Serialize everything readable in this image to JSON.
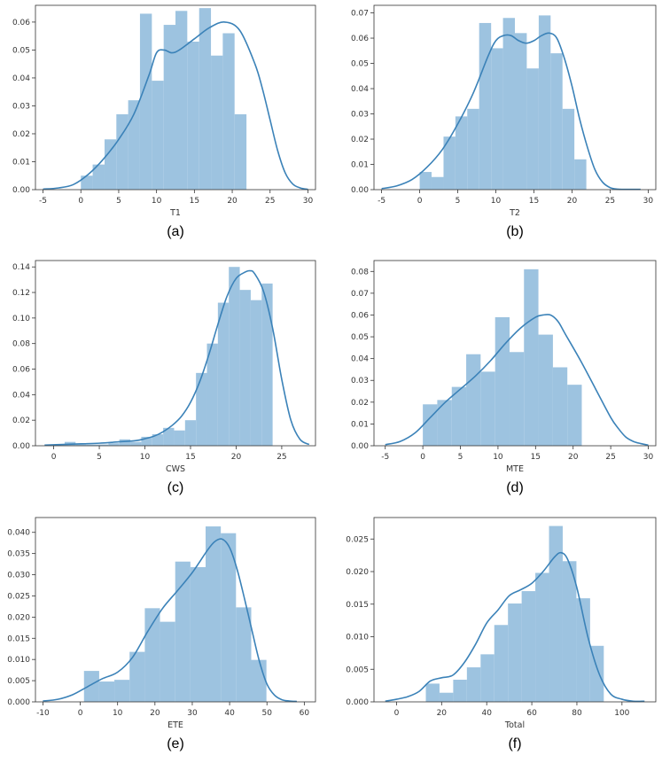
{
  "colors": {
    "bar_fill": "#9dc3e0",
    "kde_line": "#3b82b8",
    "axis": "#333333"
  },
  "chart_data": [
    {
      "type": "histogram",
      "caption": "(a)",
      "xlabel": "T1",
      "xlim": [
        -6,
        31
      ],
      "ylim": [
        0,
        0.066
      ],
      "xticks": [
        -5,
        0,
        5,
        10,
        15,
        20,
        25,
        30
      ],
      "yticks": [
        0.0,
        0.01,
        0.02,
        0.03,
        0.04,
        0.05,
        0.06
      ],
      "ytick_labels": [
        "0.00",
        "0.01",
        "0.02",
        "0.03",
        "0.04",
        "0.05",
        "0.06"
      ],
      "bars": [
        {
          "x0": 0,
          "x1": 1.56,
          "height": 0.005
        },
        {
          "x0": 1.56,
          "x1": 3.13,
          "height": 0.009
        },
        {
          "x0": 3.13,
          "x1": 4.69,
          "height": 0.018
        },
        {
          "x0": 4.69,
          "x1": 6.25,
          "height": 0.027
        },
        {
          "x0": 6.25,
          "x1": 7.81,
          "height": 0.032
        },
        {
          "x0": 7.81,
          "x1": 9.38,
          "height": 0.063
        },
        {
          "x0": 9.38,
          "x1": 10.94,
          "height": 0.039
        },
        {
          "x0": 10.94,
          "x1": 12.5,
          "height": 0.059
        },
        {
          "x0": 12.5,
          "x1": 14.06,
          "height": 0.064
        },
        {
          "x0": 14.06,
          "x1": 15.63,
          "height": 0.053
        },
        {
          "x0": 15.63,
          "x1": 17.19,
          "height": 0.065
        },
        {
          "x0": 17.19,
          "x1": 18.75,
          "height": 0.048
        },
        {
          "x0": 18.75,
          "x1": 20.31,
          "height": 0.056
        },
        {
          "x0": 20.31,
          "x1": 21.88,
          "height": 0.027
        }
      ],
      "kde": {
        "x": [
          -5,
          -3,
          -1,
          1,
          3,
          5,
          7,
          9,
          10,
          11,
          12,
          13,
          15,
          17,
          19,
          21,
          23,
          24,
          25,
          26,
          27,
          28,
          29,
          30
        ],
        "y": [
          0.0002,
          0.0006,
          0.0018,
          0.0055,
          0.011,
          0.018,
          0.027,
          0.041,
          0.049,
          0.05,
          0.049,
          0.05,
          0.054,
          0.058,
          0.06,
          0.057,
          0.045,
          0.036,
          0.025,
          0.014,
          0.006,
          0.002,
          0.0006,
          0.0001
        ]
      }
    },
    {
      "type": "histogram",
      "caption": "(b)",
      "xlabel": "T2",
      "xlim": [
        -6,
        31
      ],
      "ylim": [
        0,
        0.073
      ],
      "xticks": [
        -5,
        0,
        5,
        10,
        15,
        20,
        25,
        30
      ],
      "yticks": [
        0.0,
        0.01,
        0.02,
        0.03,
        0.04,
        0.05,
        0.06,
        0.07
      ],
      "ytick_labels": [
        "0.00",
        "0.01",
        "0.02",
        "0.03",
        "0.04",
        "0.05",
        "0.06",
        "0.07"
      ],
      "bars": [
        {
          "x0": 0,
          "x1": 1.56,
          "height": 0.007
        },
        {
          "x0": 1.56,
          "x1": 3.13,
          "height": 0.005
        },
        {
          "x0": 3.13,
          "x1": 4.69,
          "height": 0.021
        },
        {
          "x0": 4.69,
          "x1": 6.25,
          "height": 0.029
        },
        {
          "x0": 6.25,
          "x1": 7.81,
          "height": 0.032
        },
        {
          "x0": 7.81,
          "x1": 9.38,
          "height": 0.066
        },
        {
          "x0": 9.38,
          "x1": 10.94,
          "height": 0.056
        },
        {
          "x0": 10.94,
          "x1": 12.5,
          "height": 0.068
        },
        {
          "x0": 12.5,
          "x1": 14.06,
          "height": 0.062
        },
        {
          "x0": 14.06,
          "x1": 15.63,
          "height": 0.048
        },
        {
          "x0": 15.63,
          "x1": 17.19,
          "height": 0.069
        },
        {
          "x0": 17.19,
          "x1": 18.75,
          "height": 0.054
        },
        {
          "x0": 18.75,
          "x1": 20.31,
          "height": 0.032
        },
        {
          "x0": 20.31,
          "x1": 21.88,
          "height": 0.012
        }
      ],
      "kde": {
        "x": [
          -5,
          -3,
          -1,
          1,
          3,
          5,
          7,
          9,
          10,
          11,
          12,
          13,
          14,
          15,
          16,
          17,
          18,
          19,
          20,
          21,
          22,
          23,
          24,
          25,
          26,
          27,
          28,
          29
        ],
        "y": [
          0.0004,
          0.0015,
          0.004,
          0.009,
          0.016,
          0.026,
          0.038,
          0.053,
          0.059,
          0.061,
          0.061,
          0.059,
          0.058,
          0.059,
          0.061,
          0.062,
          0.06,
          0.052,
          0.041,
          0.028,
          0.017,
          0.008,
          0.003,
          0.0008,
          0.0002,
          0.0001,
          0.0001,
          0.0001
        ]
      }
    },
    {
      "type": "histogram",
      "caption": "(c)",
      "xlabel": "CWS",
      "xlim": [
        -2,
        28.7
      ],
      "ylim": [
        0,
        0.145
      ],
      "xticks": [
        0,
        5,
        10,
        15,
        20,
        25
      ],
      "yticks": [
        0.0,
        0.02,
        0.04,
        0.06,
        0.08,
        0.1,
        0.12,
        0.14
      ],
      "ytick_labels": [
        "0.00",
        "0.02",
        "0.04",
        "0.06",
        "0.08",
        "0.10",
        "0.12",
        "0.14"
      ],
      "bars": [
        {
          "x0": 0,
          "x1": 1.2,
          "height": 0.001
        },
        {
          "x0": 1.2,
          "x1": 2.4,
          "height": 0.003
        },
        {
          "x0": 2.4,
          "x1": 3.6,
          "height": 0.001
        },
        {
          "x0": 3.6,
          "x1": 4.8,
          "height": 0.001
        },
        {
          "x0": 4.8,
          "x1": 6.0,
          "height": 0.001
        },
        {
          "x0": 6.0,
          "x1": 7.2,
          "height": 0.002
        },
        {
          "x0": 7.2,
          "x1": 8.4,
          "height": 0.005
        },
        {
          "x0": 8.4,
          "x1": 9.6,
          "height": 0.003
        },
        {
          "x0": 9.6,
          "x1": 10.8,
          "height": 0.007
        },
        {
          "x0": 10.8,
          "x1": 12.0,
          "height": 0.009
        },
        {
          "x0": 12.0,
          "x1": 13.2,
          "height": 0.014
        },
        {
          "x0": 13.2,
          "x1": 14.4,
          "height": 0.012
        },
        {
          "x0": 14.4,
          "x1": 15.6,
          "height": 0.02
        },
        {
          "x0": 15.6,
          "x1": 16.8,
          "height": 0.057
        },
        {
          "x0": 16.8,
          "x1": 18.0,
          "height": 0.08
        },
        {
          "x0": 18.0,
          "x1": 19.2,
          "height": 0.112
        },
        {
          "x0": 19.2,
          "x1": 20.4,
          "height": 0.14
        },
        {
          "x0": 20.4,
          "x1": 21.6,
          "height": 0.122
        },
        {
          "x0": 21.6,
          "x1": 22.8,
          "height": 0.114
        },
        {
          "x0": 22.8,
          "x1": 24.0,
          "height": 0.127
        }
      ],
      "kde": {
        "x": [
          -1,
          1,
          3,
          5,
          7,
          9,
          10,
          11,
          12,
          13,
          14,
          15,
          16,
          17,
          18,
          19,
          20,
          21,
          21.5,
          22,
          23,
          24,
          25,
          26,
          27,
          28
        ],
        "y": [
          0.0005,
          0.001,
          0.0015,
          0.002,
          0.003,
          0.004,
          0.0055,
          0.0075,
          0.011,
          0.016,
          0.023,
          0.034,
          0.05,
          0.071,
          0.095,
          0.117,
          0.131,
          0.136,
          0.137,
          0.135,
          0.121,
          0.092,
          0.052,
          0.02,
          0.005,
          0.001
        ]
      }
    },
    {
      "type": "histogram",
      "caption": "(d)",
      "xlabel": "MTE",
      "xlim": [
        -6.5,
        31
      ],
      "ylim": [
        0,
        0.085
      ],
      "xticks": [
        -5,
        0,
        5,
        10,
        15,
        20,
        25,
        30
      ],
      "yticks": [
        0.0,
        0.01,
        0.02,
        0.03,
        0.04,
        0.05,
        0.06,
        0.07,
        0.08
      ],
      "ytick_labels": [
        "0.00",
        "0.01",
        "0.02",
        "0.03",
        "0.04",
        "0.05",
        "0.06",
        "0.07",
        "0.08"
      ],
      "bars": [
        {
          "x0": 0,
          "x1": 1.92,
          "height": 0.019
        },
        {
          "x0": 1.92,
          "x1": 3.85,
          "height": 0.021
        },
        {
          "x0": 3.85,
          "x1": 5.77,
          "height": 0.027
        },
        {
          "x0": 5.77,
          "x1": 7.69,
          "height": 0.042
        },
        {
          "x0": 7.69,
          "x1": 9.62,
          "height": 0.034
        },
        {
          "x0": 9.62,
          "x1": 11.54,
          "height": 0.059
        },
        {
          "x0": 11.54,
          "x1": 13.46,
          "height": 0.043
        },
        {
          "x0": 13.46,
          "x1": 15.38,
          "height": 0.081
        },
        {
          "x0": 15.38,
          "x1": 17.31,
          "height": 0.051
        },
        {
          "x0": 17.31,
          "x1": 19.23,
          "height": 0.036
        },
        {
          "x0": 19.23,
          "x1": 21.15,
          "height": 0.028
        }
      ],
      "kde": {
        "x": [
          -5,
          -3,
          -1,
          1,
          3,
          5,
          7,
          9,
          11,
          13,
          15,
          16,
          17,
          18,
          19,
          21,
          23,
          25,
          26,
          27,
          28,
          29,
          30
        ],
        "y": [
          0.0005,
          0.002,
          0.006,
          0.013,
          0.02,
          0.026,
          0.032,
          0.039,
          0.047,
          0.054,
          0.059,
          0.06,
          0.06,
          0.057,
          0.051,
          0.039,
          0.026,
          0.013,
          0.008,
          0.004,
          0.002,
          0.001,
          0.0003
        ]
      }
    },
    {
      "type": "histogram",
      "caption": "(e)",
      "xlabel": "ETE",
      "xlim": [
        -12,
        63
      ],
      "ylim": [
        0,
        0.0435
      ],
      "xticks": [
        -10,
        0,
        10,
        20,
        30,
        40,
        50,
        60
      ],
      "yticks": [
        0.0,
        0.005,
        0.01,
        0.015,
        0.02,
        0.025,
        0.03,
        0.035,
        0.04
      ],
      "ytick_labels": [
        "0.000",
        "0.005",
        "0.010",
        "0.015",
        "0.020",
        "0.025",
        "0.030",
        "0.035",
        "0.040"
      ],
      "bars": [
        {
          "x0": 1,
          "x1": 5.07,
          "height": 0.0073
        },
        {
          "x0": 5.07,
          "x1": 9.14,
          "height": 0.0048
        },
        {
          "x0": 9.14,
          "x1": 13.21,
          "height": 0.0052
        },
        {
          "x0": 13.21,
          "x1": 17.29,
          "height": 0.0118
        },
        {
          "x0": 17.29,
          "x1": 21.36,
          "height": 0.0221
        },
        {
          "x0": 21.36,
          "x1": 25.43,
          "height": 0.0189
        },
        {
          "x0": 25.43,
          "x1": 29.5,
          "height": 0.0331
        },
        {
          "x0": 29.5,
          "x1": 33.57,
          "height": 0.0318
        },
        {
          "x0": 33.57,
          "x1": 37.64,
          "height": 0.0414
        },
        {
          "x0": 37.64,
          "x1": 41.71,
          "height": 0.0398
        },
        {
          "x0": 41.71,
          "x1": 45.79,
          "height": 0.0223
        },
        {
          "x0": 45.79,
          "x1": 49.86,
          "height": 0.0099
        }
      ],
      "kde": {
        "x": [
          -10,
          -6,
          -2,
          2,
          6,
          10,
          14,
          18,
          22,
          26,
          30,
          34,
          36,
          38,
          40,
          42,
          44,
          46,
          48,
          50,
          52,
          54,
          56,
          58
        ],
        "y": [
          0.0002,
          0.0006,
          0.0017,
          0.0036,
          0.0055,
          0.007,
          0.0105,
          0.0165,
          0.022,
          0.0262,
          0.0305,
          0.0357,
          0.0378,
          0.0384,
          0.0364,
          0.0313,
          0.0243,
          0.0168,
          0.0095,
          0.0042,
          0.0016,
          0.0005,
          0.0002,
          0.0001
        ]
      }
    },
    {
      "type": "histogram",
      "caption": "(f)",
      "xlabel": "Total",
      "xlim": [
        -10,
        115
      ],
      "ylim": [
        0,
        0.0283
      ],
      "xticks": [
        0,
        20,
        40,
        60,
        80,
        100
      ],
      "yticks": [
        0.0,
        0.005,
        0.01,
        0.015,
        0.02,
        0.025
      ],
      "ytick_labels": [
        "0.000",
        "0.005",
        "0.010",
        "0.015",
        "0.020",
        "0.025"
      ],
      "bars": [
        {
          "x0": 13,
          "x1": 19.07,
          "height": 0.0028
        },
        {
          "x0": 19.07,
          "x1": 25.14,
          "height": 0.0014
        },
        {
          "x0": 25.14,
          "x1": 31.21,
          "height": 0.0034
        },
        {
          "x0": 31.21,
          "x1": 37.29,
          "height": 0.0053
        },
        {
          "x0": 37.29,
          "x1": 43.36,
          "height": 0.0073
        },
        {
          "x0": 43.36,
          "x1": 49.43,
          "height": 0.0118
        },
        {
          "x0": 49.43,
          "x1": 55.5,
          "height": 0.0151
        },
        {
          "x0": 55.5,
          "x1": 61.57,
          "height": 0.017
        },
        {
          "x0": 61.57,
          "x1": 67.64,
          "height": 0.0198
        },
        {
          "x0": 67.64,
          "x1": 73.71,
          "height": 0.027
        },
        {
          "x0": 73.71,
          "x1": 79.79,
          "height": 0.0216
        },
        {
          "x0": 79.79,
          "x1": 85.86,
          "height": 0.0159
        },
        {
          "x0": 85.86,
          "x1": 91.93,
          "height": 0.0086
        }
      ],
      "kde": {
        "x": [
          -5,
          0,
          5,
          10,
          15,
          20,
          25,
          30,
          35,
          40,
          45,
          50,
          55,
          60,
          65,
          70,
          73,
          76,
          80,
          85,
          90,
          95,
          100,
          105,
          110
        ],
        "y": [
          0.0001,
          0.0004,
          0.0008,
          0.0016,
          0.0032,
          0.0037,
          0.0041,
          0.006,
          0.0088,
          0.0121,
          0.0141,
          0.0163,
          0.0172,
          0.0182,
          0.02,
          0.0222,
          0.0229,
          0.0218,
          0.0175,
          0.0098,
          0.0042,
          0.0012,
          0.0004,
          0.0001,
          0.0001
        ]
      }
    }
  ]
}
